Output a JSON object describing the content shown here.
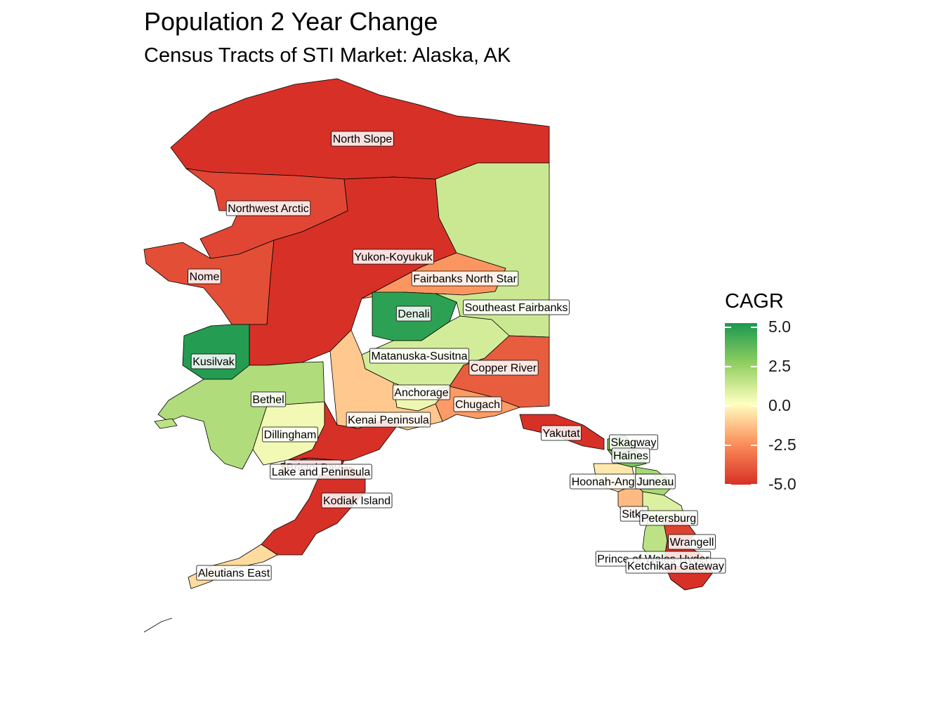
{
  "title": "Population 2 Year Change",
  "subtitle": "Census Tracts of STI Market: Alaska, AK",
  "legend": {
    "title": "CAGR",
    "ticks": [
      "5.0",
      "2.5",
      "0.0",
      "-2.5",
      "-5.0"
    ],
    "colors": [
      "#1a9850",
      "#91cf60",
      "#ffffbf",
      "#fc8d59",
      "#d73027"
    ]
  },
  "regions": [
    {
      "name": "North Slope",
      "cagr": -5.0
    },
    {
      "name": "Northwest Arctic",
      "cagr": -4.4
    },
    {
      "name": "Nome",
      "cagr": -4.2
    },
    {
      "name": "Yukon-Koyukuk",
      "cagr": -5.0
    },
    {
      "name": "Fairbanks North Star",
      "cagr": -2.3
    },
    {
      "name": "Denali",
      "cagr": 4.6
    },
    {
      "name": "Southeast Fairbanks",
      "cagr": 1.2
    },
    {
      "name": "Kusilvak",
      "cagr": 4.8
    },
    {
      "name": "Matanuska-Susitna",
      "cagr": 1.0
    },
    {
      "name": "Copper River",
      "cagr": -3.8
    },
    {
      "name": "Bethel",
      "cagr": 1.8
    },
    {
      "name": "Anchorage",
      "cagr": 0.4
    },
    {
      "name": "Chugach",
      "cagr": -2.2
    },
    {
      "name": "Kenai Peninsula",
      "cagr": -1.2
    },
    {
      "name": "Dillingham",
      "cagr": 0.3
    },
    {
      "name": "Bristol Bay",
      "cagr": -5.0
    },
    {
      "name": "Lake and Peninsula",
      "cagr": -5.0
    },
    {
      "name": "Kodiak Island",
      "cagr": -5.0
    },
    {
      "name": "Aleutians East",
      "cagr": -0.8
    },
    {
      "name": "Yakutat",
      "cagr": -5.0
    },
    {
      "name": "Skagway",
      "cagr": 2.8
    },
    {
      "name": "Haines",
      "cagr": 3.0
    },
    {
      "name": "Hoonah-Angoon",
      "cagr": -0.5
    },
    {
      "name": "Juneau",
      "cagr": 2.0
    },
    {
      "name": "Sitka",
      "cagr": -1.5
    },
    {
      "name": "Petersburg",
      "cagr": 0.8
    },
    {
      "name": "Wrangell",
      "cagr": -4.5
    },
    {
      "name": "Prince of Wales-Hyder",
      "cagr": 1.5
    },
    {
      "name": "Ketchikan Gateway",
      "cagr": -5.0
    }
  ],
  "labels": [
    {
      "text": "North Slope"
    },
    {
      "text": "Northwest Arctic"
    },
    {
      "text": "Nome"
    },
    {
      "text": "Yukon-Koyukuk"
    },
    {
      "text": "Fairbanks North Star"
    },
    {
      "text": "Denali"
    },
    {
      "text": "Southeast Fairbanks"
    },
    {
      "text": "Kusilvak"
    },
    {
      "text": "Matanuska-Susitna"
    },
    {
      "text": "Copper River"
    },
    {
      "text": "Bethel"
    },
    {
      "text": "Anchorage"
    },
    {
      "text": "Chugach"
    },
    {
      "text": "Kenai Peninsula"
    },
    {
      "text": "Dillingham"
    },
    {
      "text": "Bristol Bay"
    },
    {
      "text": "Lake and Peninsula"
    },
    {
      "text": "Kodiak Island"
    },
    {
      "text": "Aleutians East"
    },
    {
      "text": "Yakutat"
    },
    {
      "text": "Skagway"
    },
    {
      "text": "Haines"
    },
    {
      "text": "Hoonah-Angoon"
    },
    {
      "text": "Juneau"
    },
    {
      "text": "Sitka"
    },
    {
      "text": "Petersburg"
    },
    {
      "text": "Wrangell"
    },
    {
      "text": "Prince of Wales-Hyder"
    },
    {
      "text": "Ketchikan Gateway"
    }
  ]
}
